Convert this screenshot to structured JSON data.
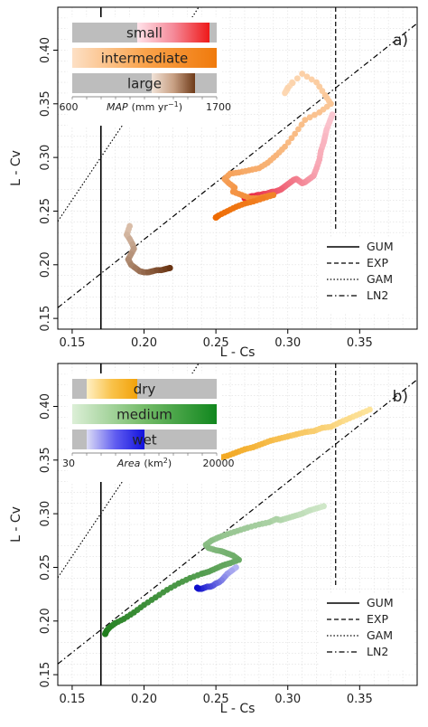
{
  "chart_data": [
    {
      "type": "scatter",
      "panel_label": "a)",
      "xlabel": "L - Cs",
      "ylabel": "L - Cv",
      "xlim": [
        0.14,
        0.39
      ],
      "ylim": [
        0.14,
        0.44
      ],
      "xticks": [
        "0.15",
        "0.20",
        "0.25",
        "0.30",
        "0.35"
      ],
      "yticks": [
        "0.15",
        "0.20",
        "0.25",
        "0.30",
        "0.35",
        "0.40"
      ],
      "xtick_values": [
        0.15,
        0.2,
        0.25,
        0.3,
        0.35
      ],
      "ytick_values": [
        0.15,
        0.2,
        0.25,
        0.3,
        0.35,
        0.4
      ],
      "grid": true,
      "reference_lines": [
        {
          "name": "GUM",
          "style": "solid",
          "x": 0.17
        },
        {
          "name": "EXP",
          "style": "dashed",
          "x": 0.3333
        },
        {
          "name": "GAM",
          "style": "dotted",
          "points": [
            [
              0.14,
              0.2405
            ],
            [
              0.19,
              0.34
            ],
            [
              0.238,
              0.44
            ]
          ]
        },
        {
          "name": "LN2",
          "style": "dashdot",
          "points": [
            [
              0.14,
              0.16
            ],
            [
              0.39,
              0.425
            ]
          ]
        }
      ],
      "legend": {
        "placement": "bottom-right",
        "entries": [
          "GUM",
          "EXP",
          "GAM",
          "LN2"
        ]
      },
      "inset_legend": {
        "bars": [
          {
            "label": "small",
            "start": 0.45,
            "end": 0.95,
            "colors": [
              "#ffe3ea",
              "#f58a99",
              "#ee1919"
            ]
          },
          {
            "label": "intermediate",
            "start": 0.0,
            "end": 1.0,
            "colors": [
              "#fde0c5",
              "#f9a34c",
              "#f07a0c"
            ]
          },
          {
            "label": "large",
            "start": 0.55,
            "end": 0.85,
            "colors": [
              "#f1e3d8",
              "#c8a084",
              "#6e3a18"
            ]
          }
        ],
        "axis_min": "600",
        "axis_max": "1700",
        "axis_label": "MAP",
        "axis_unit": "(mm yr",
        "axis_exp": "−1",
        "axis_close": ")"
      },
      "series": [
        {
          "name": "small",
          "colors": [
            "#fbc7d1",
            "#e8213a"
          ],
          "x": [
            0.331,
            0.329,
            0.327,
            0.326,
            0.325,
            0.323,
            0.322,
            0.32,
            0.318,
            0.316,
            0.314,
            0.312,
            0.31,
            0.308,
            0.306,
            0.304,
            0.302,
            0.3,
            0.298,
            0.296,
            0.295,
            0.293,
            0.291,
            0.289,
            0.287,
            0.285,
            0.283,
            0.281,
            0.279,
            0.277,
            0.275,
            0.273,
            0.271,
            0.27
          ],
          "y": [
            0.34,
            0.333,
            0.326,
            0.32,
            0.314,
            0.306,
            0.298,
            0.29,
            0.283,
            0.281,
            0.279,
            0.277,
            0.276,
            0.278,
            0.28,
            0.279,
            0.277,
            0.275,
            0.273,
            0.271,
            0.27,
            0.269,
            0.268,
            0.268,
            0.267,
            0.266,
            0.266,
            0.265,
            0.265,
            0.264,
            0.264,
            0.263,
            0.262,
            0.262
          ]
        },
        {
          "name": "intermediate",
          "colors": [
            "#fddbb8",
            "#ee6a00"
          ],
          "x": [
            0.303,
            0.298,
            0.3,
            0.31,
            0.32,
            0.326,
            0.33,
            0.322,
            0.312,
            0.305,
            0.298,
            0.292,
            0.286,
            0.28,
            0.273,
            0.266,
            0.26,
            0.256,
            0.259,
            0.263,
            0.262,
            0.268,
            0.274,
            0.28,
            0.286,
            0.29,
            0.283,
            0.276,
            0.27,
            0.264,
            0.258,
            0.252,
            0.25
          ],
          "y": [
            0.37,
            0.36,
            0.365,
            0.378,
            0.37,
            0.358,
            0.35,
            0.342,
            0.335,
            0.322,
            0.31,
            0.302,
            0.295,
            0.29,
            0.288,
            0.286,
            0.285,
            0.28,
            0.276,
            0.272,
            0.268,
            0.265,
            0.262,
            0.262,
            0.264,
            0.265,
            0.262,
            0.259,
            0.257,
            0.254,
            0.25,
            0.246,
            0.244
          ]
        },
        {
          "name": "large",
          "colors": [
            "#d9bda8",
            "#6a3514"
          ],
          "x": [
            0.19,
            0.188,
            0.19,
            0.192,
            0.193,
            0.191,
            0.189,
            0.191,
            0.194,
            0.197,
            0.2,
            0.203,
            0.206,
            0.209,
            0.212,
            0.215,
            0.218
          ],
          "y": [
            0.236,
            0.228,
            0.224,
            0.219,
            0.215,
            0.21,
            0.205,
            0.2,
            0.197,
            0.194,
            0.193,
            0.193,
            0.194,
            0.195,
            0.195,
            0.196,
            0.197
          ]
        }
      ]
    },
    {
      "type": "scatter",
      "panel_label": "b)",
      "xlabel": "L - Cs",
      "ylabel": "L - Cv",
      "xlim": [
        0.14,
        0.39
      ],
      "ylim": [
        0.14,
        0.44
      ],
      "xticks": [
        "0.15",
        "0.20",
        "0.25",
        "0.30",
        "0.35"
      ],
      "yticks": [
        "0.15",
        "0.20",
        "0.25",
        "0.30",
        "0.35",
        "0.40"
      ],
      "xtick_values": [
        0.15,
        0.2,
        0.25,
        0.3,
        0.35
      ],
      "ytick_values": [
        0.15,
        0.2,
        0.25,
        0.3,
        0.35,
        0.4
      ],
      "grid": true,
      "reference_lines": [
        {
          "name": "GUM",
          "style": "solid",
          "x": 0.17
        },
        {
          "name": "EXP",
          "style": "dashed",
          "x": 0.3333
        },
        {
          "name": "GAM",
          "style": "dotted",
          "points": [
            [
              0.14,
              0.2405
            ],
            [
              0.19,
              0.34
            ],
            [
              0.238,
              0.44
            ]
          ]
        },
        {
          "name": "LN2",
          "style": "dashdot",
          "points": [
            [
              0.14,
              0.16
            ],
            [
              0.39,
              0.425
            ]
          ]
        }
      ],
      "legend": {
        "placement": "bottom-right",
        "entries": [
          "GUM",
          "EXP",
          "GAM",
          "LN2"
        ]
      },
      "inset_legend": {
        "bars": [
          {
            "label": "dry",
            "start": 0.1,
            "end": 0.45,
            "colors": [
              "#fff0c4",
              "#f9c24a",
              "#f2a20a"
            ]
          },
          {
            "label": "medium",
            "start": 0.0,
            "end": 1.0,
            "colors": [
              "#dcefd7",
              "#74bb68",
              "#11871e"
            ]
          },
          {
            "label": "wet",
            "start": 0.1,
            "end": 0.5,
            "colors": [
              "#dcdcf5",
              "#5f5cf0",
              "#1212dd"
            ]
          }
        ],
        "axis_min": "30",
        "axis_max": "20000",
        "axis_label": "Area",
        "axis_unit": "(km",
        "axis_exp": "2",
        "axis_close": ")"
      },
      "series": [
        {
          "name": "dry",
          "colors": [
            "#fde39a",
            "#f2a51c"
          ],
          "x": [
            0.357,
            0.35,
            0.343,
            0.336,
            0.33,
            0.324,
            0.318,
            0.312,
            0.306,
            0.3,
            0.294,
            0.288,
            0.282,
            0.276,
            0.27,
            0.264,
            0.258,
            0.252
          ],
          "y": [
            0.397,
            0.393,
            0.389,
            0.385,
            0.381,
            0.38,
            0.377,
            0.376,
            0.374,
            0.372,
            0.37,
            0.368,
            0.365,
            0.362,
            0.36,
            0.357,
            0.354,
            0.352
          ]
        },
        {
          "name": "medium",
          "colors": [
            "#cfe7c8",
            "#1f7d1c"
          ],
          "x": [
            0.325,
            0.32,
            0.315,
            0.31,
            0.305,
            0.3,
            0.295,
            0.292,
            0.287,
            0.28,
            0.272,
            0.265,
            0.258,
            0.252,
            0.247,
            0.243,
            0.245,
            0.25,
            0.254,
            0.258,
            0.262,
            0.266,
            0.26,
            0.255,
            0.25,
            0.245,
            0.24,
            0.232,
            0.224,
            0.216,
            0.208,
            0.2,
            0.193,
            0.186,
            0.18,
            0.176,
            0.174,
            0.173
          ],
          "y": [
            0.307,
            0.305,
            0.303,
            0.3,
            0.298,
            0.296,
            0.294,
            0.295,
            0.292,
            0.29,
            0.287,
            0.284,
            0.281,
            0.278,
            0.275,
            0.271,
            0.268,
            0.266,
            0.265,
            0.263,
            0.261,
            0.257,
            0.254,
            0.252,
            0.249,
            0.246,
            0.244,
            0.24,
            0.235,
            0.229,
            0.222,
            0.215,
            0.208,
            0.202,
            0.198,
            0.194,
            0.191,
            0.188
          ]
        },
        {
          "name": "wet",
          "colors": [
            "#b3b3f2",
            "#0e0ecc"
          ],
          "x": [
            0.264,
            0.261,
            0.258,
            0.256,
            0.254,
            0.252,
            0.25,
            0.248,
            0.246,
            0.244,
            0.242,
            0.24,
            0.238,
            0.237
          ],
          "y": [
            0.25,
            0.247,
            0.244,
            0.241,
            0.238,
            0.236,
            0.235,
            0.233,
            0.232,
            0.232,
            0.231,
            0.23,
            0.23,
            0.231
          ]
        }
      ]
    }
  ]
}
